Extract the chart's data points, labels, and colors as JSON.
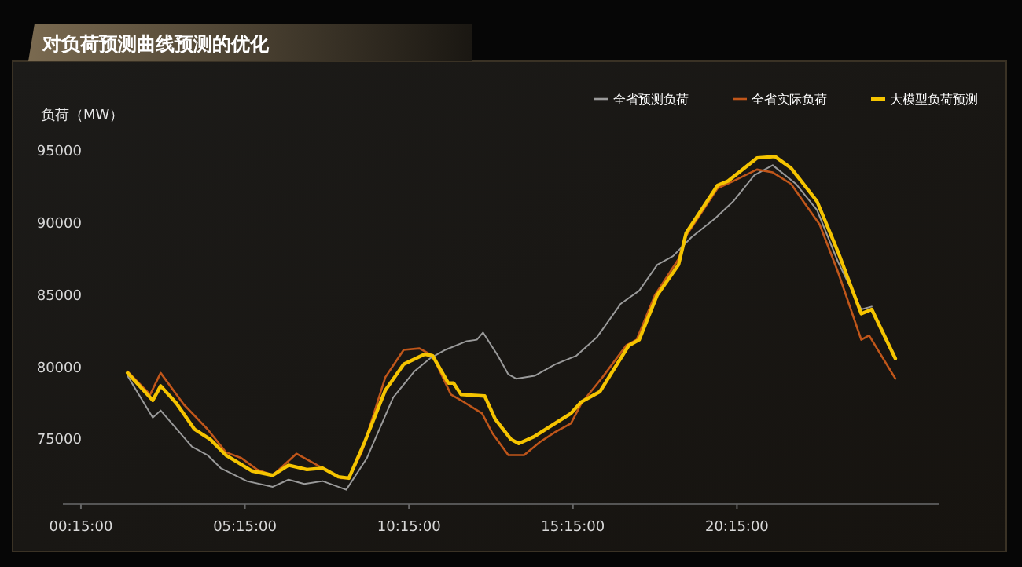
{
  "chart_data": {
    "type": "line",
    "title": "对负荷预测曲线预测的优化",
    "ylabel": "负荷（MW）",
    "xlim": [
      -0.3,
      26.4
    ],
    "ylim": [
      70500,
      95000
    ],
    "xticks": [
      {
        "value": 0.25,
        "label": "00:15:00"
      },
      {
        "value": 5.25,
        "label": "05:15:00"
      },
      {
        "value": 10.25,
        "label": "10:15:00"
      },
      {
        "value": 15.25,
        "label": "15:15:00"
      },
      {
        "value": 20.25,
        "label": "20:15:00"
      }
    ],
    "yticks": [
      75000,
      80000,
      85000,
      90000,
      95000
    ],
    "legend": "top right",
    "series": [
      {
        "name": "全省预测负荷",
        "color": "#9a9a9a",
        "x": [
          1.67,
          2.44,
          2.68,
          3.63,
          4.11,
          4.51,
          5.31,
          6.1,
          6.58,
          7.06,
          7.62,
          8.34,
          8.97,
          9.77,
          10.41,
          10.89,
          11.36,
          12.01,
          12.32,
          12.51,
          12.96,
          13.28,
          13.52,
          14.08,
          14.71,
          15.36,
          15.99,
          16.71,
          17.27,
          17.82,
          18.3,
          18.86,
          19.58,
          20.14,
          20.78,
          21.34,
          22.05,
          22.69,
          23.33,
          24.04,
          24.36
        ],
        "values": [
          79400,
          76500,
          77000,
          74500,
          73900,
          73000,
          72100,
          71700,
          72200,
          71900,
          72100,
          71500,
          73700,
          77900,
          79700,
          80600,
          81200,
          81800,
          81900,
          82400,
          80800,
          79500,
          79200,
          79400,
          80200,
          80800,
          82100,
          84400,
          85300,
          87100,
          87700,
          89000,
          90300,
          91500,
          93300,
          94000,
          92700,
          90900,
          87300,
          84000,
          84200
        ]
      },
      {
        "name": "全省实际负荷",
        "color": "#c0561a",
        "x": [
          1.67,
          2.36,
          2.68,
          3.39,
          4.11,
          4.67,
          5.14,
          5.62,
          6.1,
          6.82,
          7.62,
          8.18,
          8.42,
          8.81,
          9.53,
          10.09,
          10.57,
          10.97,
          11.53,
          11.84,
          12.48,
          12.8,
          13.28,
          13.76,
          14.24,
          14.71,
          15.19,
          15.51,
          16.15,
          16.87,
          17.19,
          17.75,
          18.47,
          18.7,
          19.66,
          20.14,
          20.86,
          21.34,
          21.9,
          22.77,
          23.33,
          24.04,
          24.28,
          25.08
        ],
        "values": [
          79700,
          78100,
          79600,
          77400,
          75700,
          74100,
          73700,
          72900,
          72500,
          74000,
          73000,
          72300,
          72300,
          74100,
          79300,
          81200,
          81300,
          80800,
          78100,
          77700,
          76800,
          75400,
          73900,
          73900,
          74800,
          75500,
          76100,
          77500,
          79300,
          81500,
          81900,
          85000,
          87500,
          89100,
          92400,
          92900,
          93700,
          93500,
          92700,
          89900,
          86600,
          81900,
          82200,
          79200
        ]
      },
      {
        "name": "大模型负荷预测",
        "color": "#f5c400",
        "x": [
          1.67,
          2.44,
          2.68,
          3.16,
          3.71,
          4.19,
          4.67,
          5.47,
          6.1,
          6.58,
          7.14,
          7.62,
          8.1,
          8.42,
          8.9,
          9.53,
          10.09,
          10.73,
          10.97,
          11.45,
          11.61,
          11.84,
          12.56,
          12.88,
          13.36,
          13.6,
          14.08,
          14.56,
          15.19,
          15.51,
          16.07,
          16.95,
          17.27,
          17.82,
          18.47,
          18.7,
          19.66,
          19.98,
          20.86,
          21.41,
          21.9,
          22.69,
          23.33,
          24.04,
          24.36,
          25.08
        ],
        "values": [
          79600,
          77700,
          78700,
          77500,
          75700,
          75000,
          73900,
          72800,
          72500,
          73200,
          72900,
          73000,
          72400,
          72300,
          74800,
          78400,
          80200,
          80900,
          80800,
          78900,
          78900,
          78100,
          78000,
          76400,
          75000,
          74700,
          75200,
          75900,
          76800,
          77600,
          78300,
          81500,
          81900,
          85000,
          87100,
          89300,
          92600,
          92900,
          94500,
          94600,
          93800,
          91500,
          88000,
          83700,
          84000,
          80600
        ]
      }
    ]
  }
}
